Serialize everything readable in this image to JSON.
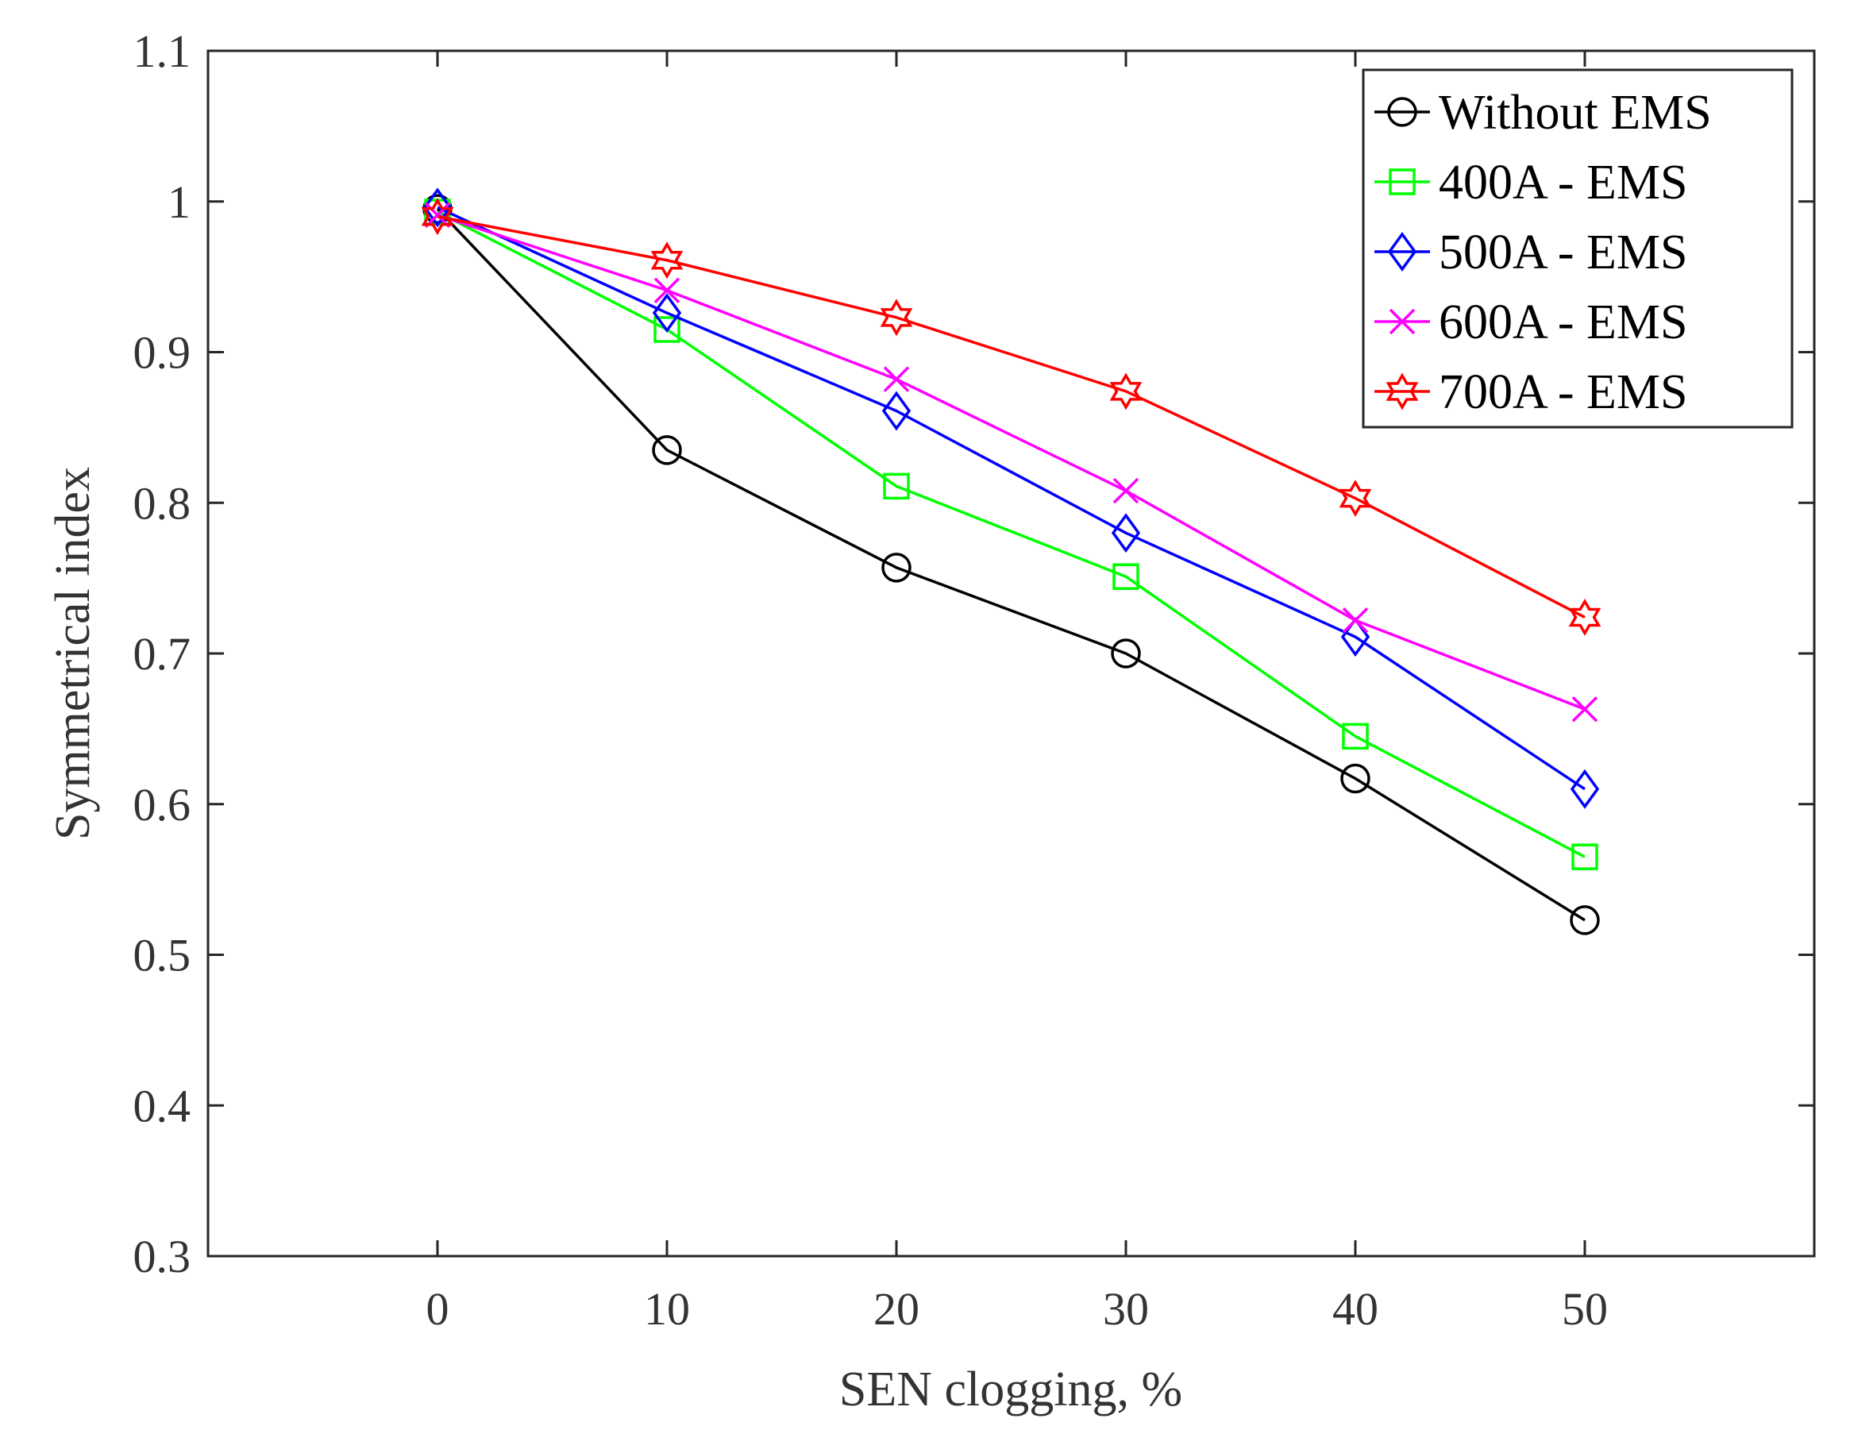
{
  "chart_data": {
    "type": "line",
    "title": "",
    "xlabel": "SEN clogging, %",
    "ylabel": "Symmetrical index",
    "xlim": [
      -10,
      60
    ],
    "ylim": [
      0.3,
      1.1
    ],
    "xticks": [
      0,
      10,
      20,
      30,
      40,
      50
    ],
    "xtick_labels": [
      "0",
      "10",
      "20",
      "30",
      "40",
      "50"
    ],
    "yticks": [
      0.3,
      0.4,
      0.5,
      0.6,
      0.7,
      0.8,
      0.9,
      1.0,
      1.1
    ],
    "ytick_labels": [
      "0.3",
      "0.4",
      "0.5",
      "0.6",
      "0.7",
      "0.8",
      "0.9",
      "1",
      "1.1"
    ],
    "grid": false,
    "legend_position": "top-right",
    "x": [
      0,
      10,
      20,
      30,
      40,
      50
    ],
    "series": [
      {
        "name": "Without EMS",
        "color": "#000000",
        "marker": "circle",
        "values": [
          0.995,
          0.835,
          0.757,
          0.7,
          0.617,
          0.523
        ]
      },
      {
        "name": "400A - EMS",
        "color": "#00ff00",
        "marker": "square",
        "values": [
          0.993,
          0.915,
          0.811,
          0.751,
          0.645,
          0.565
        ]
      },
      {
        "name": "500A - EMS",
        "color": "#0000ff",
        "marker": "diamond",
        "values": [
          0.996,
          0.926,
          0.861,
          0.78,
          0.711,
          0.61
        ]
      },
      {
        "name": "600A - EMS",
        "color": "#ff00ff",
        "marker": "x",
        "values": [
          0.991,
          0.941,
          0.882,
          0.808,
          0.722,
          0.663
        ]
      },
      {
        "name": "700A - EMS",
        "color": "#ff0000",
        "marker": "hexagram",
        "values": [
          0.99,
          0.961,
          0.923,
          0.874,
          0.803,
          0.724
        ]
      }
    ]
  }
}
